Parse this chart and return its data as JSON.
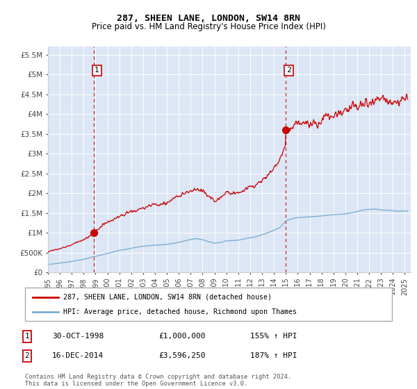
{
  "title": "287, SHEEN LANE, LONDON, SW14 8RN",
  "subtitle": "Price paid vs. HM Land Registry's House Price Index (HPI)",
  "background_color": "#dce6f5",
  "plot_bg_color": "#dce6f5",
  "ylabel_ticks": [
    "£0",
    "£500K",
    "£1M",
    "£1.5M",
    "£2M",
    "£2.5M",
    "£3M",
    "£3.5M",
    "£4M",
    "£4.5M",
    "£5M",
    "£5.5M"
  ],
  "ytick_values": [
    0,
    500000,
    1000000,
    1500000,
    2000000,
    2500000,
    3000000,
    3500000,
    4000000,
    4500000,
    5000000,
    5500000
  ],
  "ylim": [
    0,
    5700000
  ],
  "xlim_start": 1995.0,
  "xlim_end": 2025.5,
  "xtick_years": [
    1995,
    1996,
    1997,
    1998,
    1999,
    2000,
    2001,
    2002,
    2003,
    2004,
    2005,
    2006,
    2007,
    2008,
    2009,
    2010,
    2011,
    2012,
    2013,
    2014,
    2015,
    2016,
    2017,
    2018,
    2019,
    2020,
    2021,
    2022,
    2023,
    2024,
    2025
  ],
  "sale1_x": 1998.83,
  "sale1_y": 1000000,
  "sale1_label": "1",
  "sale1_date": "30-OCT-1998",
  "sale1_price": "£1,000,000",
  "sale1_hpi": "155% ↑ HPI",
  "sale2_x": 2014.96,
  "sale2_y": 3596250,
  "sale2_label": "2",
  "sale2_date": "16-DEC-2014",
  "sale2_price": "£3,596,250",
  "sale2_hpi": "187% ↑ HPI",
  "red_line_color": "#cc0000",
  "blue_line_color": "#7aafd4",
  "dashed_vline_color": "#cc0000",
  "legend_label_red": "287, SHEEN LANE, LONDON, SW14 8RN (detached house)",
  "legend_label_blue": "HPI: Average price, detached house, Richmond upon Thames",
  "footnote": "Contains HM Land Registry data © Crown copyright and database right 2024.\nThis data is licensed under the Open Government Licence v3.0."
}
